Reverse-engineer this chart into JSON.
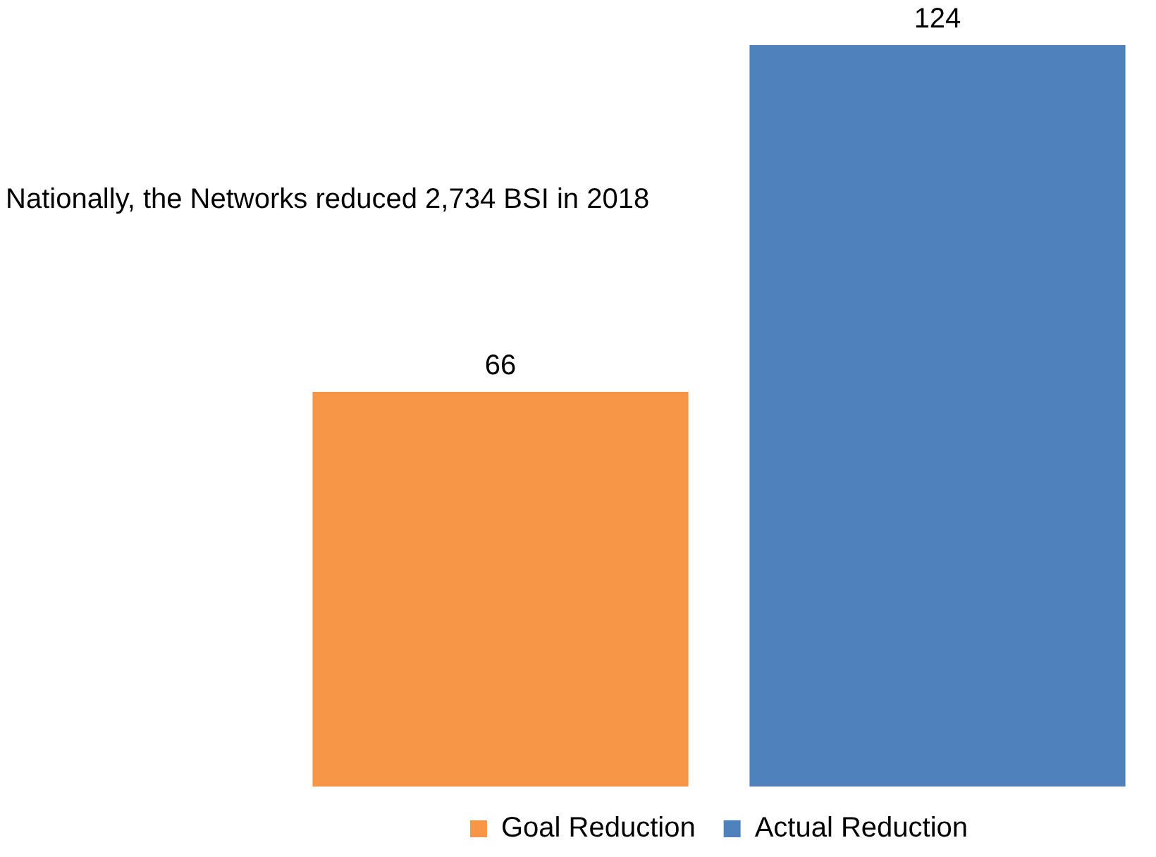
{
  "chart_data": {
    "type": "bar",
    "categories": [
      null
    ],
    "series": [
      {
        "name": "Goal Reduction",
        "color": "#f79646",
        "values": [
          66
        ]
      },
      {
        "name": "Actual Reduction",
        "color": "#4f81bd",
        "values": [
          124
        ]
      }
    ],
    "annotations": [
      "Nationally, the Networks reduced 2,734 BSI in 2018"
    ],
    "data_labels": true,
    "legend": "bottom"
  }
}
